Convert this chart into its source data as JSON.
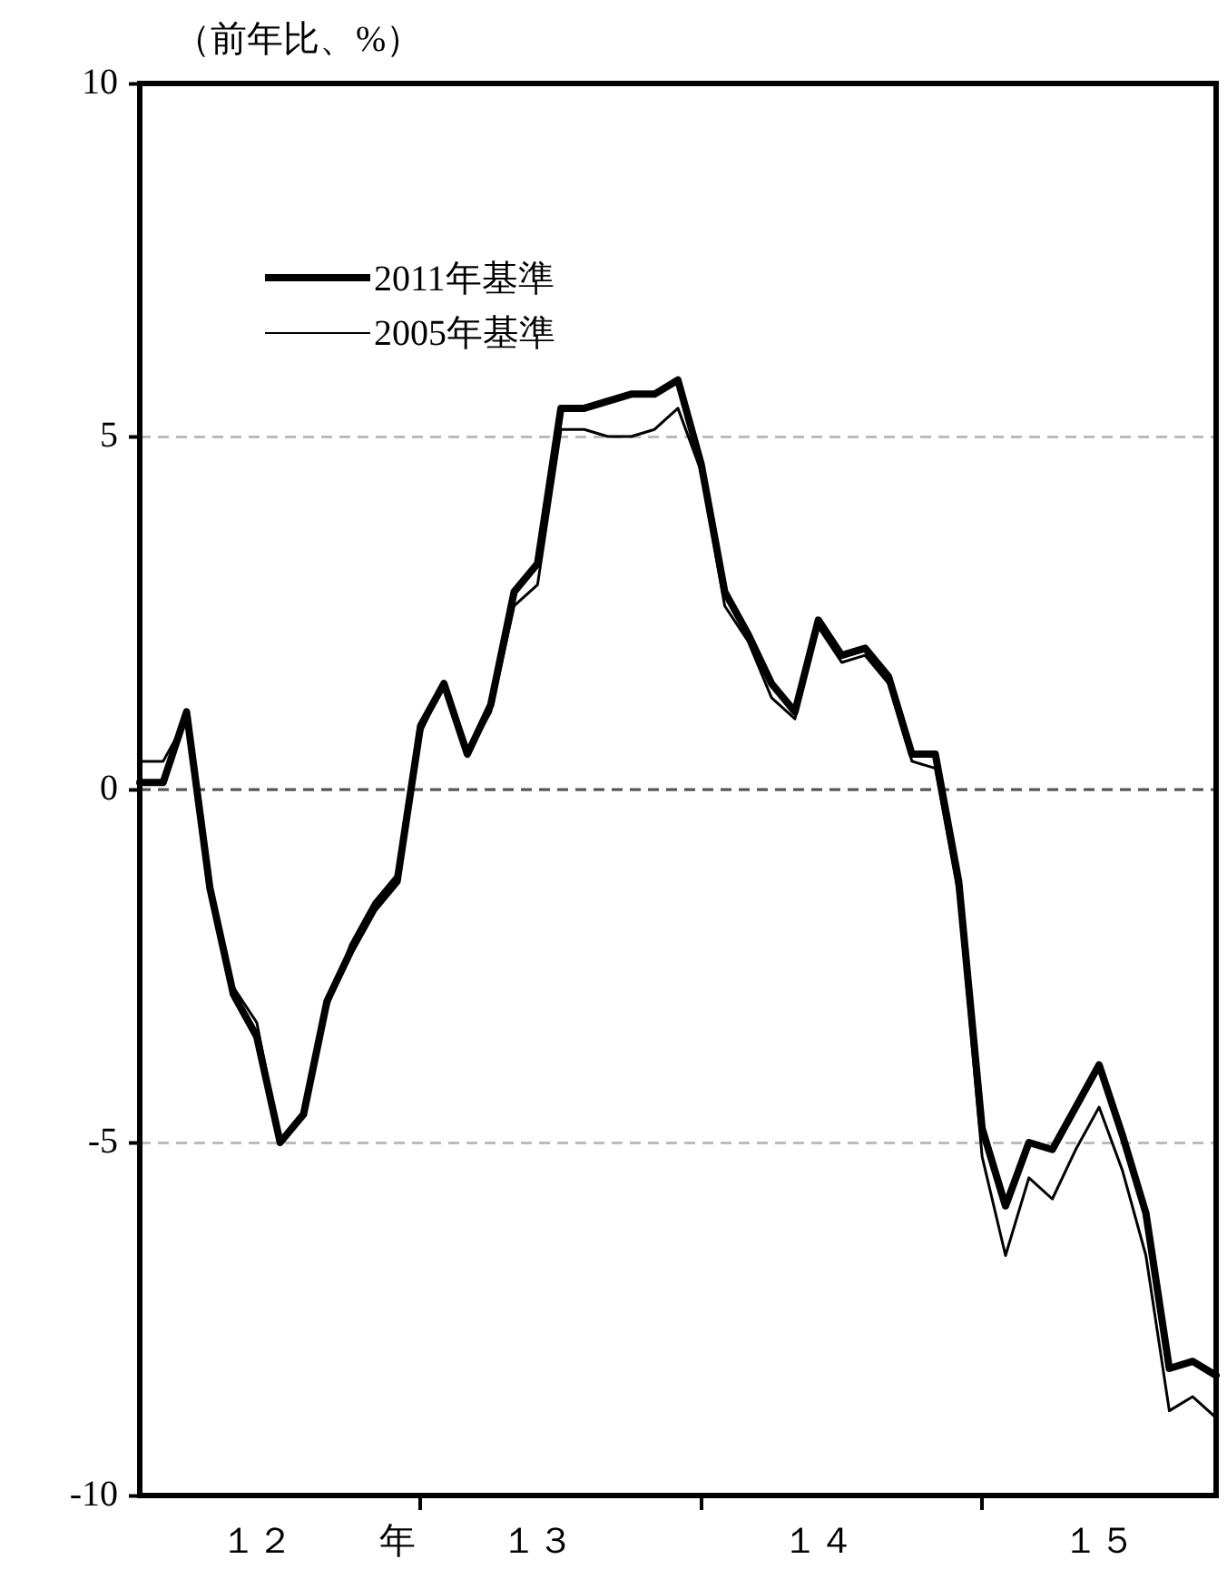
{
  "chart_data": {
    "type": "line",
    "ylabel": "（前年比、%）",
    "categories": [
      null,
      null,
      null,
      null,
      null,
      "１２",
      null,
      null,
      null,
      null,
      null,
      "年",
      null,
      null,
      null,
      null,
      null,
      "１３",
      null,
      null,
      null,
      null,
      null,
      null,
      null,
      null,
      null,
      null,
      null,
      "１４",
      null,
      null,
      null,
      null,
      null,
      null,
      null,
      null,
      null,
      null,
      null,
      "１５",
      null,
      null,
      null,
      null,
      null
    ],
    "series": [
      {
        "name": "2011年基準",
        "color": "#000000",
        "values": [
          0.1,
          0.1,
          1.1,
          -1.4,
          -2.9,
          -3.5,
          -5.0,
          -4.6,
          -3.0,
          -2.3,
          -1.7,
          -1.3,
          0.9,
          1.5,
          0.5,
          1.2,
          2.8,
          3.2,
          5.4,
          5.4,
          5.5,
          5.6,
          5.6,
          5.8,
          4.6,
          2.8,
          2.2,
          1.5,
          1.1,
          2.4,
          1.9,
          2.0,
          1.6,
          0.5,
          0.5,
          -1.3,
          -4.8,
          -5.9,
          -5.0,
          -5.1,
          -4.5,
          -3.9,
          -4.9,
          -6.0,
          -8.2,
          -8.1,
          -8.3
        ]
      },
      {
        "name": "2005年基準",
        "color": "#000000",
        "values": [
          0.4,
          0.4,
          1.0,
          -1.5,
          -2.8,
          -3.3,
          -5.0,
          -4.6,
          -3.1,
          -2.2,
          -1.6,
          -1.2,
          0.8,
          1.5,
          0.5,
          1.1,
          2.6,
          2.9,
          5.1,
          5.1,
          5.0,
          5.0,
          5.1,
          5.4,
          4.5,
          2.6,
          2.1,
          1.3,
          1.0,
          2.3,
          1.8,
          1.9,
          1.5,
          0.4,
          0.3,
          -1.5,
          -5.2,
          -6.6,
          -5.5,
          -5.8,
          -5.1,
          -4.5,
          -5.4,
          -6.6,
          -8.8,
          -8.6,
          -8.9
        ]
      }
    ],
    "ylim": [
      -10,
      10
    ],
    "yticks": [
      -10,
      -5,
      0,
      5,
      10
    ],
    "grid": "y",
    "ref_lines": [
      {
        "axis": "y",
        "value": 0,
        "color": "#555555",
        "line_style": "dashed"
      }
    ],
    "legend": "top left",
    "marker": "none",
    "line_style": "solid"
  }
}
